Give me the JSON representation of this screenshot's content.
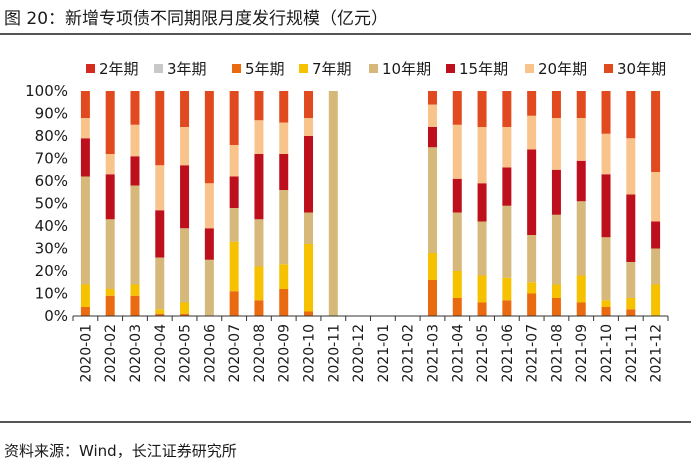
{
  "figure_title": "图 20：新增专项债不同期限月度发行规模（亿元）",
  "source": "资料来源：Wind，长江证券研究所",
  "chart_data": {
    "type": "bar",
    "stacked": true,
    "percent": true,
    "title": "新增专项债不同期限月度发行规模（亿元）",
    "xlabel": "",
    "ylabel": "",
    "ylim": [
      0,
      100
    ],
    "yticks": [
      "0%",
      "10%",
      "20%",
      "30%",
      "40%",
      "50%",
      "60%",
      "70%",
      "80%",
      "90%",
      "100%"
    ],
    "legend_position": "top",
    "categories": [
      "2020-01",
      "2020-02",
      "2020-03",
      "2020-04",
      "2020-05",
      "2020-06",
      "2020-07",
      "2020-08",
      "2020-09",
      "2020-10",
      "2020-11",
      "2020-12",
      "2021-01",
      "2021-02",
      "2021-03",
      "2021-04",
      "2021-05",
      "2021-06",
      "2021-07",
      "2021-08",
      "2021-09",
      "2021-10",
      "2021-11",
      "2021-12"
    ],
    "series": [
      {
        "name": "2年期",
        "color": "#d42b1e",
        "values": [
          0,
          0,
          0,
          0,
          0,
          0,
          0,
          0,
          0,
          0,
          0,
          0,
          0,
          0,
          0,
          0,
          0,
          0,
          0,
          0,
          0,
          0,
          0,
          0
        ]
      },
      {
        "name": "3年期",
        "color": "#c8c8c8",
        "values": [
          0,
          0,
          0,
          0,
          0,
          0,
          0,
          0,
          0,
          0,
          0,
          0,
          0,
          0,
          0,
          0,
          0,
          0,
          0,
          0,
          0,
          0,
          0,
          0
        ]
      },
      {
        "name": "5年期",
        "color": "#ea6a10",
        "values": [
          4,
          9,
          9,
          1,
          1,
          0,
          11,
          7,
          12,
          2,
          0,
          0,
          0,
          0,
          16,
          8,
          6,
          7,
          10,
          8,
          6,
          4,
          3,
          0
        ]
      },
      {
        "name": "7年期",
        "color": "#f6c200",
        "values": [
          10,
          3,
          5,
          2,
          5,
          0,
          22,
          15,
          11,
          30,
          0,
          0,
          0,
          0,
          12,
          12,
          12,
          10,
          5,
          6,
          12,
          3,
          5,
          14
        ]
      },
      {
        "name": "10年期",
        "color": "#d6b87a",
        "values": [
          48,
          31,
          44,
          23,
          33,
          25,
          15,
          21,
          33,
          14,
          100,
          0,
          0,
          0,
          47,
          26,
          24,
          32,
          21,
          31,
          33,
          28,
          16,
          16
        ]
      },
      {
        "name": "15年期",
        "color": "#be0f1d",
        "values": [
          17,
          20,
          13,
          21,
          28,
          14,
          14,
          29,
          16,
          34,
          0,
          0,
          0,
          0,
          9,
          15,
          17,
          17,
          38,
          20,
          18,
          28,
          30,
          12
        ]
      },
      {
        "name": "20年期",
        "color": "#f9c48c",
        "values": [
          9,
          9,
          14,
          20,
          17,
          20,
          14,
          15,
          14,
          8,
          0,
          0,
          0,
          0,
          10,
          24,
          25,
          18,
          15,
          23,
          19,
          18,
          25,
          22
        ]
      },
      {
        "name": "30年期",
        "color": "#e04a1e",
        "values": [
          12,
          28,
          15,
          33,
          16,
          41,
          24,
          13,
          14,
          12,
          0,
          0,
          0,
          0,
          6,
          15,
          16,
          16,
          11,
          12,
          12,
          19,
          21,
          36
        ]
      }
    ]
  }
}
